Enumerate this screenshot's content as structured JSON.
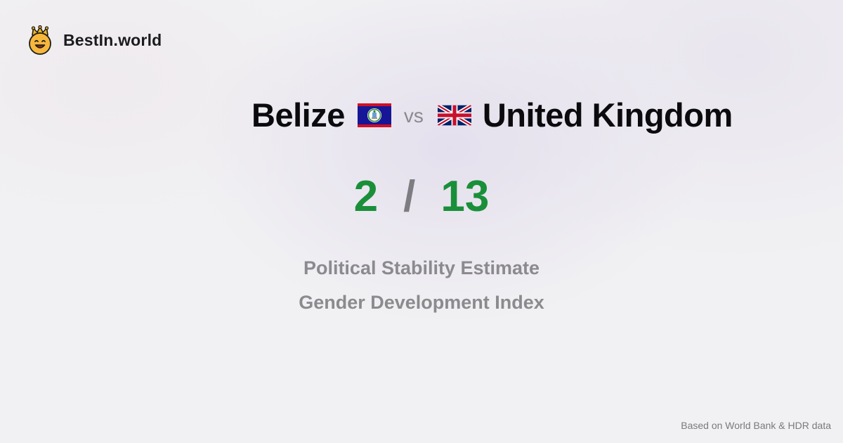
{
  "brand": {
    "name": "BestIn.world",
    "icon": "crown-smiley-icon"
  },
  "comparison": {
    "country_a": {
      "name": "Belize",
      "flag": "belize-flag-icon",
      "rank": "2",
      "metric": "Political Stability Estimate"
    },
    "vs_label": "vs",
    "country_b": {
      "name": "United Kingdom",
      "flag": "uk-flag-icon",
      "rank": "13",
      "metric": "Gender Development Index"
    },
    "separator": "/"
  },
  "footer": {
    "source": "Based on World Bank & HDR data"
  },
  "colors": {
    "rank": "#1a8f3a",
    "muted": "#8b8b8f",
    "background": "#f1f1f3"
  }
}
